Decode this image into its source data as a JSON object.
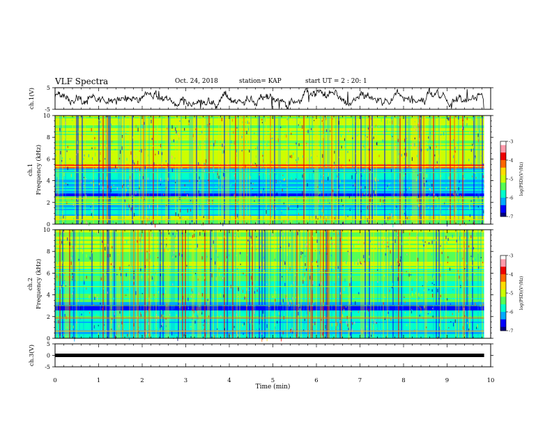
{
  "header": {
    "title": "VLF Spectra",
    "date": "Oct. 24, 2018",
    "station": "station= KAP",
    "start_time": "start  UT =   2 : 20: 1"
  },
  "chart_data": [
    {
      "type": "line",
      "panel": "ch1-waveform",
      "ylabel": "ch.1(V)",
      "ylim": [
        -5,
        5
      ],
      "yticks": [
        "5",
        "-5"
      ],
      "xlim": [
        0,
        10
      ],
      "description_of_trace": "noisy waveform around 0 V with amplitude ~ +/-2.5 V over 0 to 9.85 min",
      "x_end": 9.85
    },
    {
      "type": "heatmap",
      "panel": "ch1-spectrogram",
      "ylabel": "Frequency (kHz)",
      "channel_label": "ch.1",
      "ylim": [
        0,
        10
      ],
      "yticks": [
        "0",
        "2",
        "4",
        "6",
        "8",
        "10"
      ],
      "xlim": [
        0,
        10
      ],
      "x_end": 9.85,
      "colorbar": {
        "label": "log(PSD)(V²/Hz)",
        "range": [
          -7,
          -3
        ],
        "ticks": [
          "-3",
          "-4",
          "-5",
          "-6",
          "-7"
        ]
      }
    },
    {
      "type": "heatmap",
      "panel": "ch2-spectrogram",
      "ylabel": "Frequency (kHz)",
      "channel_label": "ch.2",
      "ylim": [
        0,
        10
      ],
      "yticks": [
        "0",
        "2",
        "4",
        "6",
        "8",
        "10"
      ],
      "xlim": [
        0,
        10
      ],
      "x_end": 9.85,
      "colorbar": {
        "label": "log(PSD)(V²/Hz)",
        "range": [
          -7,
          -3
        ],
        "ticks": [
          "-3",
          "-4",
          "-5",
          "-6",
          "-7"
        ]
      }
    },
    {
      "type": "line",
      "panel": "ch3-waveform",
      "ylabel": "ch.3(V)",
      "ylim": [
        -5,
        5
      ],
      "yticks": [
        "5",
        "0",
        "-5"
      ],
      "xlim": [
        0,
        10
      ],
      "constant_value": 0,
      "x_end": 9.85
    }
  ],
  "xaxis": {
    "label": "Time (min)",
    "ticks": [
      "0",
      "1",
      "2",
      "3",
      "4",
      "5",
      "6",
      "7",
      "8",
      "9",
      "10"
    ]
  },
  "colors": {
    "jet": [
      "#00007f",
      "#0000ff",
      "#00aaff",
      "#00ffcc",
      "#55ff55",
      "#ccff00",
      "#ffdd00",
      "#ff6600",
      "#ee0000",
      "#ff99aa",
      "#ffffff"
    ]
  }
}
